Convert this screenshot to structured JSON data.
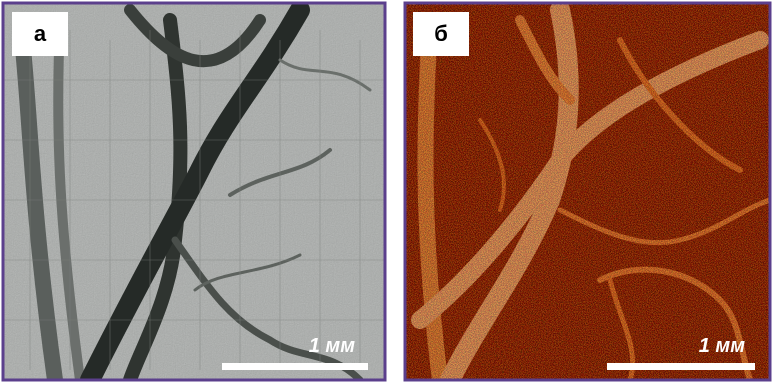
{
  "panels": [
    {
      "label": "а",
      "scale_label": "1 мм"
    },
    {
      "label": "б",
      "scale_label": "1 мм"
    }
  ]
}
